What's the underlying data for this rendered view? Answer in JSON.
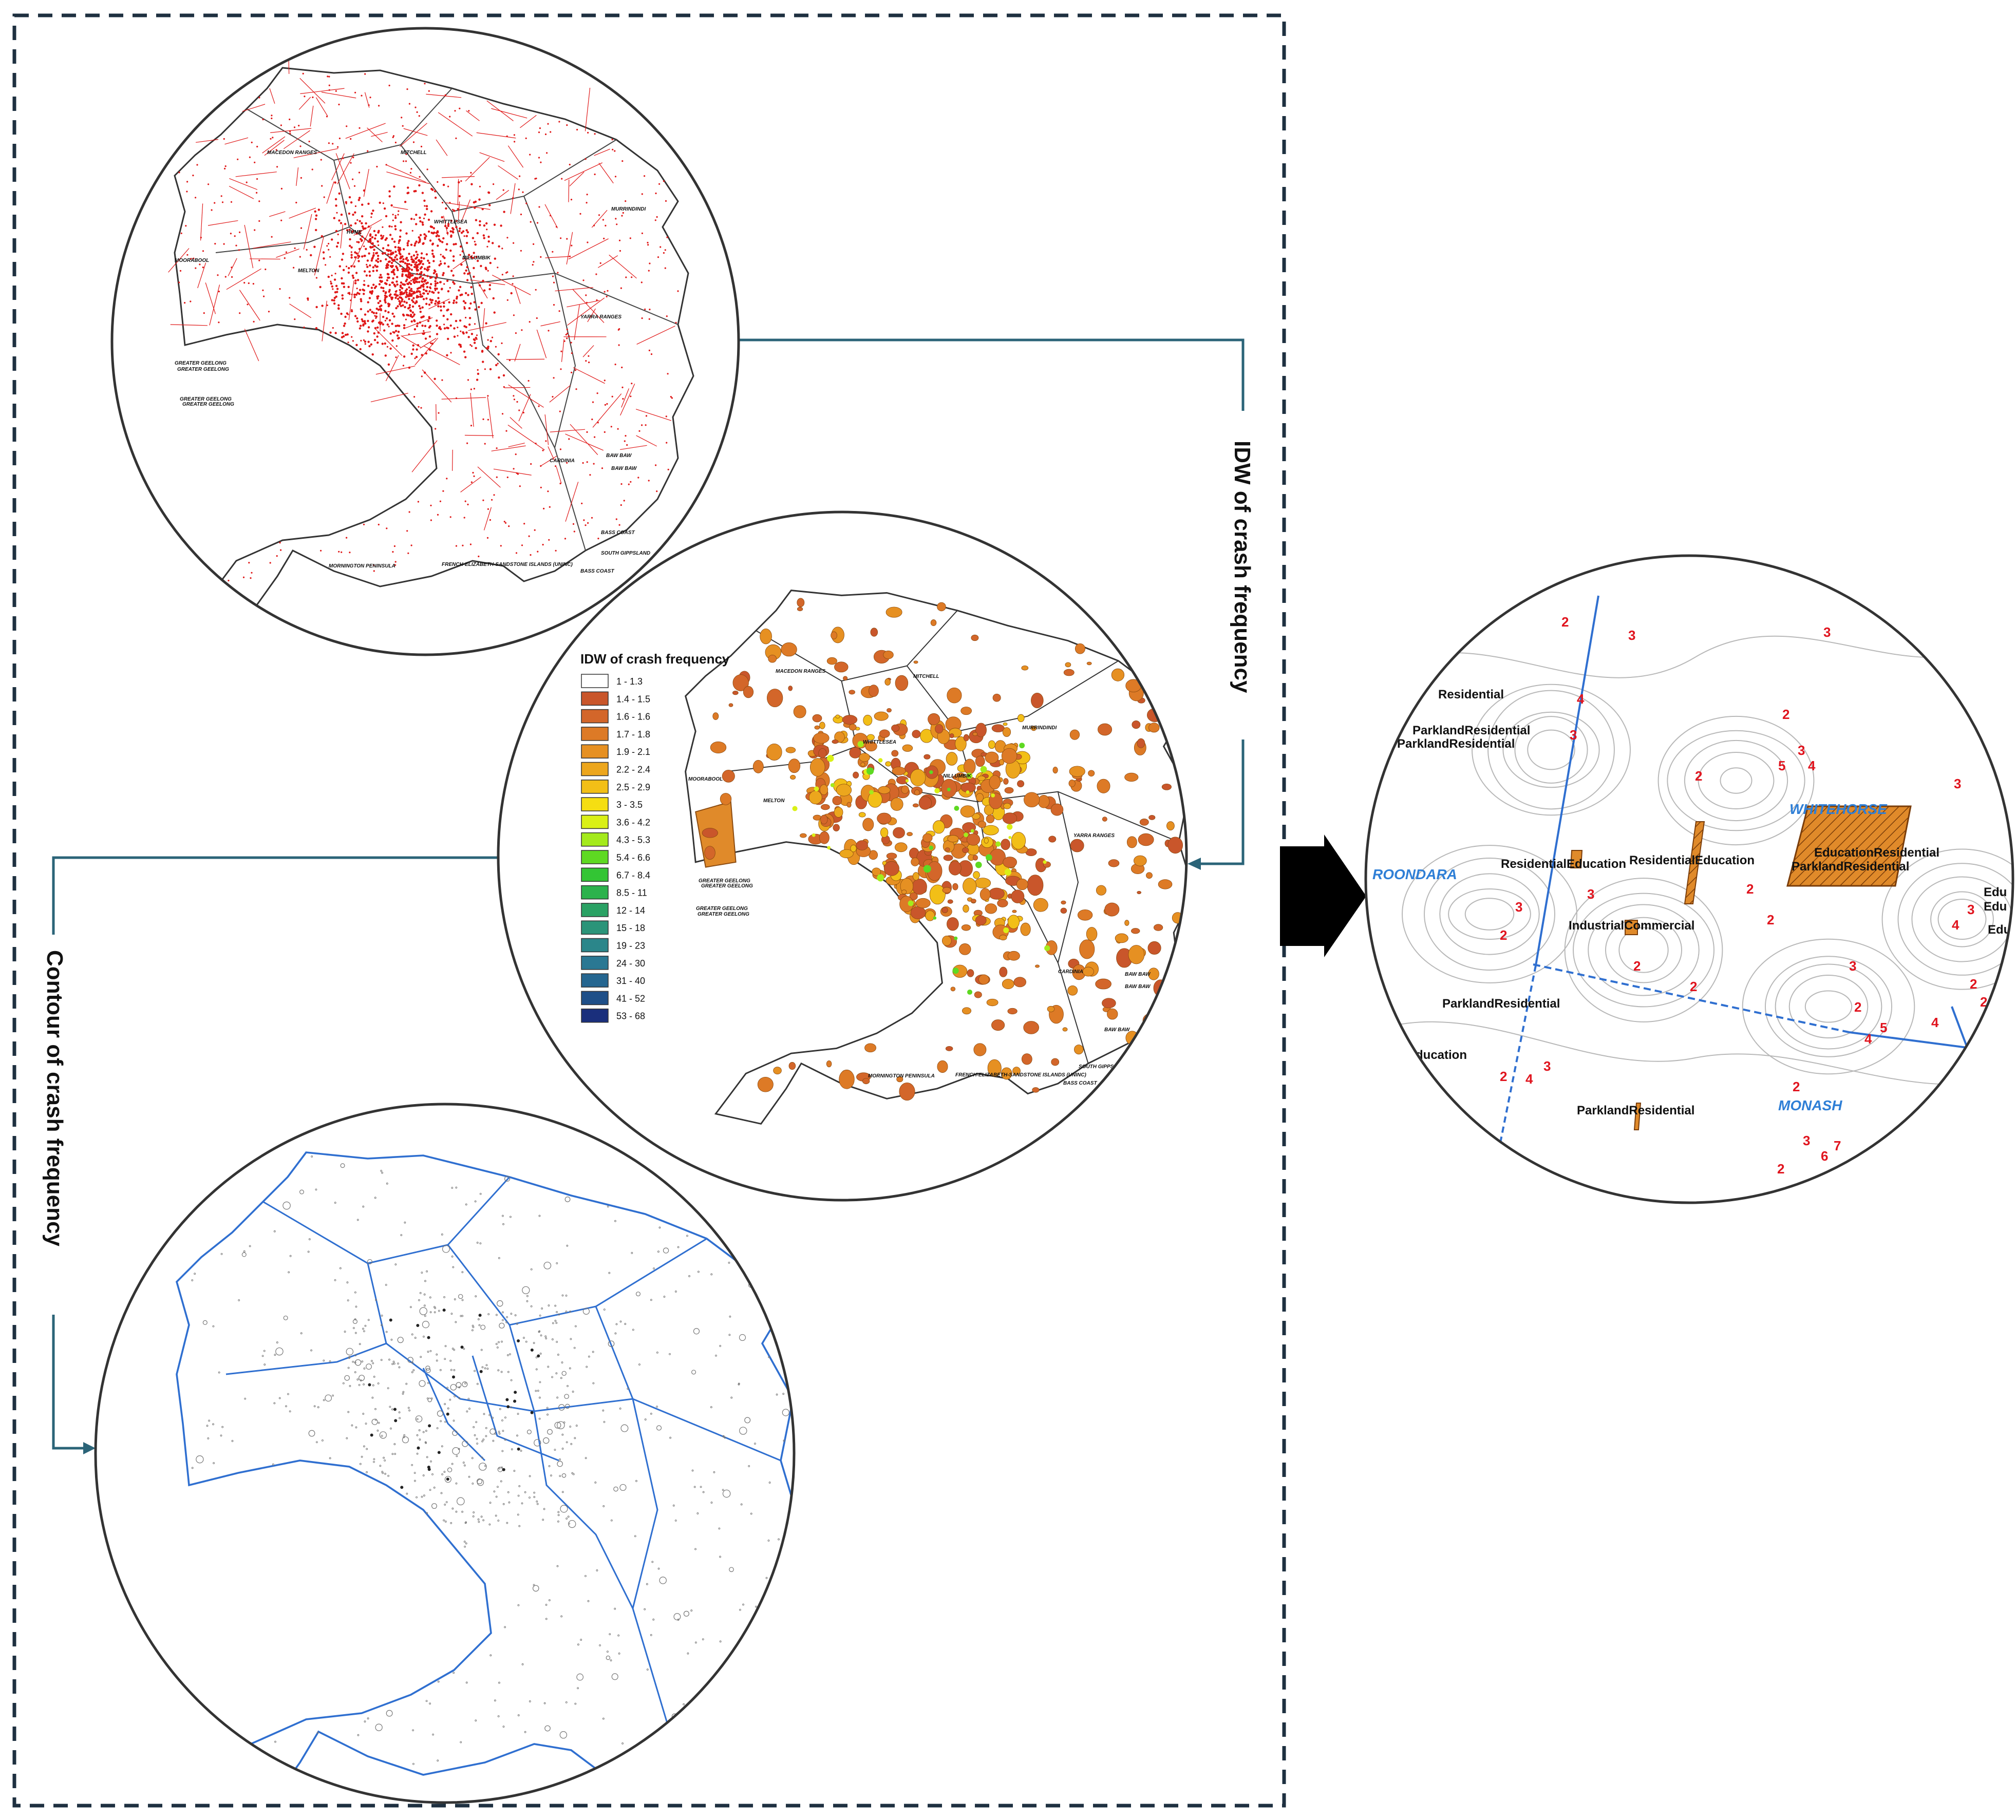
{
  "side_labels": {
    "idw": "IDW of crash frequency",
    "contour": "Contour of crash frequency"
  },
  "map1_lga_labels": [
    "MACEDON RANGES",
    "MITCHELL",
    "MURRINDINDI",
    "HUME",
    "WHITTLESEA",
    "NILLUMBIK",
    "MOORABOOL",
    "MELTON",
    "YARRA RANGES",
    "GREATER GEELONG",
    "GREATER GEELONG",
    "GREATER GEELONG",
    "GREATER GEELONG",
    "CARDINIA",
    "BAW BAW",
    "BAW BAW",
    "BASS COAST",
    "SOUTH GIPPSLAND",
    "MORNINGTON PENINSULA",
    "FRENCH-ELIZABETH-SANDSTONE ISLANDS (UNINC)",
    "BASS COAST"
  ],
  "legend": {
    "title": "IDW of crash frequency",
    "classes": [
      {
        "label": "1 - 1.3",
        "color": "#ffffff"
      },
      {
        "label": "1.4 - 1.5",
        "color": "#c9562b"
      },
      {
        "label": "1.6 - 1.6",
        "color": "#d3662a"
      },
      {
        "label": "1.7 - 1.8",
        "color": "#dd7a26"
      },
      {
        "label": "1.9 - 2.1",
        "color": "#e69022"
      },
      {
        "label": "2.2 - 2.4",
        "color": "#eca61d"
      },
      {
        "label": "2.5 - 2.9",
        "color": "#f2bf17"
      },
      {
        "label": "3 - 3.5",
        "color": "#f5de12"
      },
      {
        "label": "3.6 - 4.2",
        "color": "#daf016"
      },
      {
        "label": "4.3 - 5.3",
        "color": "#a4ea1c"
      },
      {
        "label": "5.4 - 6.6",
        "color": "#5ed922"
      },
      {
        "label": "6.7 - 8.4",
        "color": "#33c534"
      },
      {
        "label": "8.5 - 11",
        "color": "#2cb24c"
      },
      {
        "label": "12 - 14",
        "color": "#2aa264"
      },
      {
        "label": "15 - 18",
        "color": "#2b9479"
      },
      {
        "label": "19 - 23",
        "color": "#2b868a"
      },
      {
        "label": "24 - 30",
        "color": "#2a7893"
      },
      {
        "label": "31 - 40",
        "color": "#256690"
      },
      {
        "label": "41 - 52",
        "color": "#1f4f88"
      },
      {
        "label": "53 - 68",
        "color": "#1a2f7c"
      }
    ]
  },
  "map2_lga_labels": [
    "MACEDON RANGES",
    "MITCHELL",
    "MURRINDINDI",
    "WHITTLESEA",
    "NILLUMBIK",
    "MOORABOOL",
    "MELTON",
    "YARRA RANGES",
    "GREATER GEELONG",
    "GREATER GEELONG",
    "GREATER GEELONG",
    "GREATER GEELONG",
    "CARDINIA",
    "BAW BAW",
    "BAW BAW",
    "BAW BAW",
    "SOUTH GIPPSLAND",
    "MORNINGTON PENINSULA",
    "FRENCH-ELIZABETH-SANDSTONE ISLANDS (UNINC)",
    "BASS COAST"
  ],
  "zoom_labels": {
    "lgas": [
      "ROONDARA",
      "WHITEHORSE",
      "MONASH"
    ],
    "zones": [
      "Residential",
      "ParklandResidential",
      "ParklandResidential",
      "ResidentialEducation",
      "ResidentialEducation",
      "EducationResidential",
      "ParklandResidential",
      "IndustrialCommercial",
      "ParklandResidential",
      "Education",
      "ParklandResidential",
      "Edu",
      "Edu",
      "Edu"
    ],
    "contour_values": [
      "2",
      "3",
      "4",
      "5",
      "6",
      "7"
    ]
  },
  "colors": {
    "frame": "#1e3040",
    "connector": "#2b6478",
    "crash_red": "#e01818",
    "boundary_blue": "#2f6fd0",
    "idw_orange": "#e08a2a"
  }
}
